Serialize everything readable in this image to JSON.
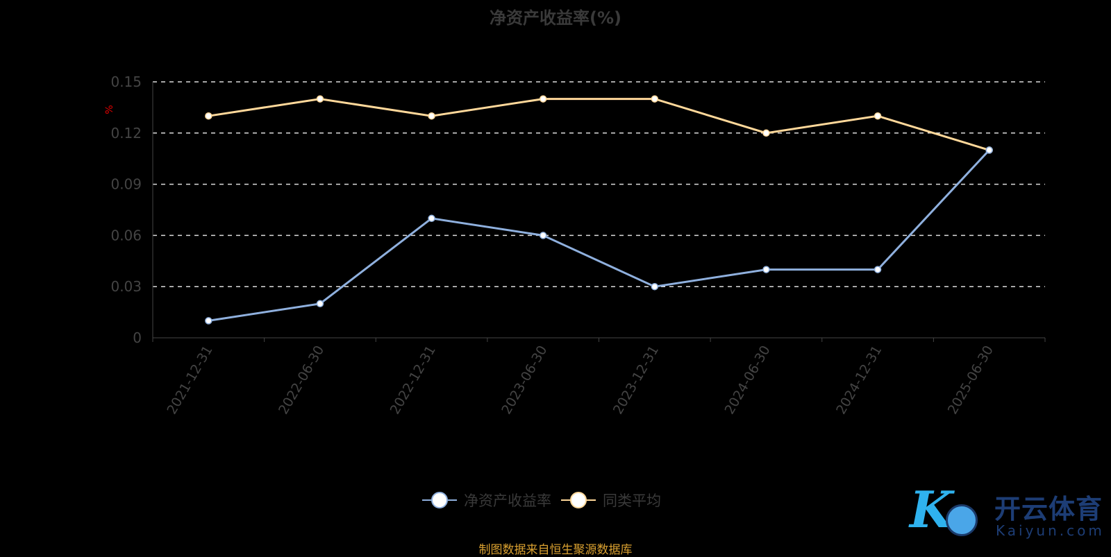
{
  "chart_data": {
    "type": "line",
    "title": "净资产收益率(%)",
    "ylabel": "%",
    "ylim": [
      0,
      0.15
    ],
    "yticks": [
      "0",
      "0.03",
      "0.06",
      "0.09",
      "0.12",
      "0.15"
    ],
    "categories": [
      "2021-12-31",
      "2022-06-30",
      "2022-12-31",
      "2023-06-30",
      "2023-12-31",
      "2024-06-30",
      "2024-12-31",
      "2025-06-30"
    ],
    "series": [
      {
        "name": "净资产收益率",
        "color": "#8fb0de",
        "values": [
          0.01,
          0.02,
          0.07,
          0.06,
          0.03,
          0.04,
          0.04,
          0.11
        ]
      },
      {
        "name": "同类平均",
        "color": "#ffd89a",
        "values": [
          0.13,
          0.14,
          0.13,
          0.14,
          0.14,
          0.12,
          0.13,
          0.11
        ]
      }
    ],
    "grid": true,
    "legend_position": "bottom"
  },
  "source": "制图数据来自恒生聚源数据库",
  "logo": {
    "cn": "开云体育",
    "en": "Kaiyun.com"
  }
}
